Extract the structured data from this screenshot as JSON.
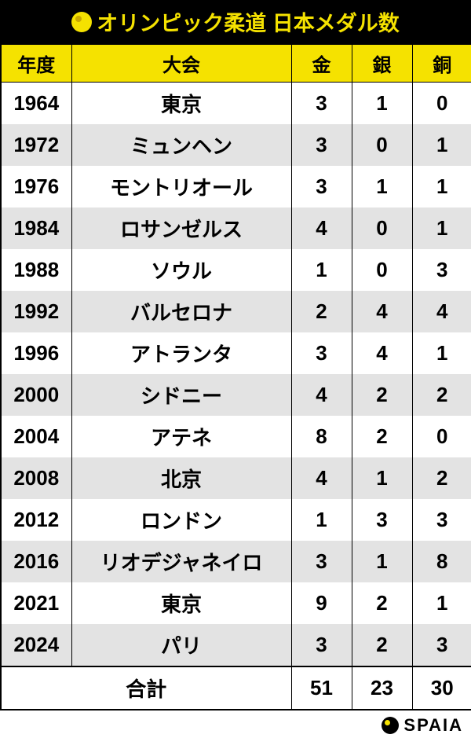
{
  "title": "オリンピック柔道 日本メダル数",
  "columns": {
    "year": "年度",
    "city": "大会",
    "gold": "金",
    "silver": "銀",
    "bronze": "銅"
  },
  "rows": [
    {
      "year": "1964",
      "city": "東京",
      "gold": "3",
      "silver": "1",
      "bronze": "0"
    },
    {
      "year": "1972",
      "city": "ミュンヘン",
      "gold": "3",
      "silver": "0",
      "bronze": "1"
    },
    {
      "year": "1976",
      "city": "モントリオール",
      "gold": "3",
      "silver": "1",
      "bronze": "1"
    },
    {
      "year": "1984",
      "city": "ロサンゼルス",
      "gold": "4",
      "silver": "0",
      "bronze": "1"
    },
    {
      "year": "1988",
      "city": "ソウル",
      "gold": "1",
      "silver": "0",
      "bronze": "3"
    },
    {
      "year": "1992",
      "city": "バルセロナ",
      "gold": "2",
      "silver": "4",
      "bronze": "4"
    },
    {
      "year": "1996",
      "city": "アトランタ",
      "gold": "3",
      "silver": "4",
      "bronze": "1"
    },
    {
      "year": "2000",
      "city": "シドニー",
      "gold": "4",
      "silver": "2",
      "bronze": "2"
    },
    {
      "year": "2004",
      "city": "アテネ",
      "gold": "8",
      "silver": "2",
      "bronze": "0"
    },
    {
      "year": "2008",
      "city": "北京",
      "gold": "4",
      "silver": "1",
      "bronze": "2"
    },
    {
      "year": "2012",
      "city": "ロンドン",
      "gold": "1",
      "silver": "3",
      "bronze": "3"
    },
    {
      "year": "2016",
      "city": "リオデジャネイロ",
      "gold": "3",
      "silver": "1",
      "bronze": "8"
    },
    {
      "year": "2021",
      "city": "東京",
      "gold": "9",
      "silver": "2",
      "bronze": "1"
    },
    {
      "year": "2024",
      "city": "パリ",
      "gold": "3",
      "silver": "2",
      "bronze": "3"
    }
  ],
  "total": {
    "label": "合計",
    "gold": "51",
    "silver": "23",
    "bronze": "30"
  },
  "footer_brand": "SPAIA",
  "style": {
    "title_bg": "#000000",
    "title_fg": "#f5e200",
    "header_bg": "#f5e200",
    "row_bg": "#ffffff",
    "row_alt_bg": "#e3e3e3",
    "border_color": "#000000",
    "col_widths": {
      "year": 90,
      "city": 280,
      "medal": 77
    },
    "title_fontsize": 27,
    "header_fontsize": 24,
    "cell_fontsize": 26
  }
}
